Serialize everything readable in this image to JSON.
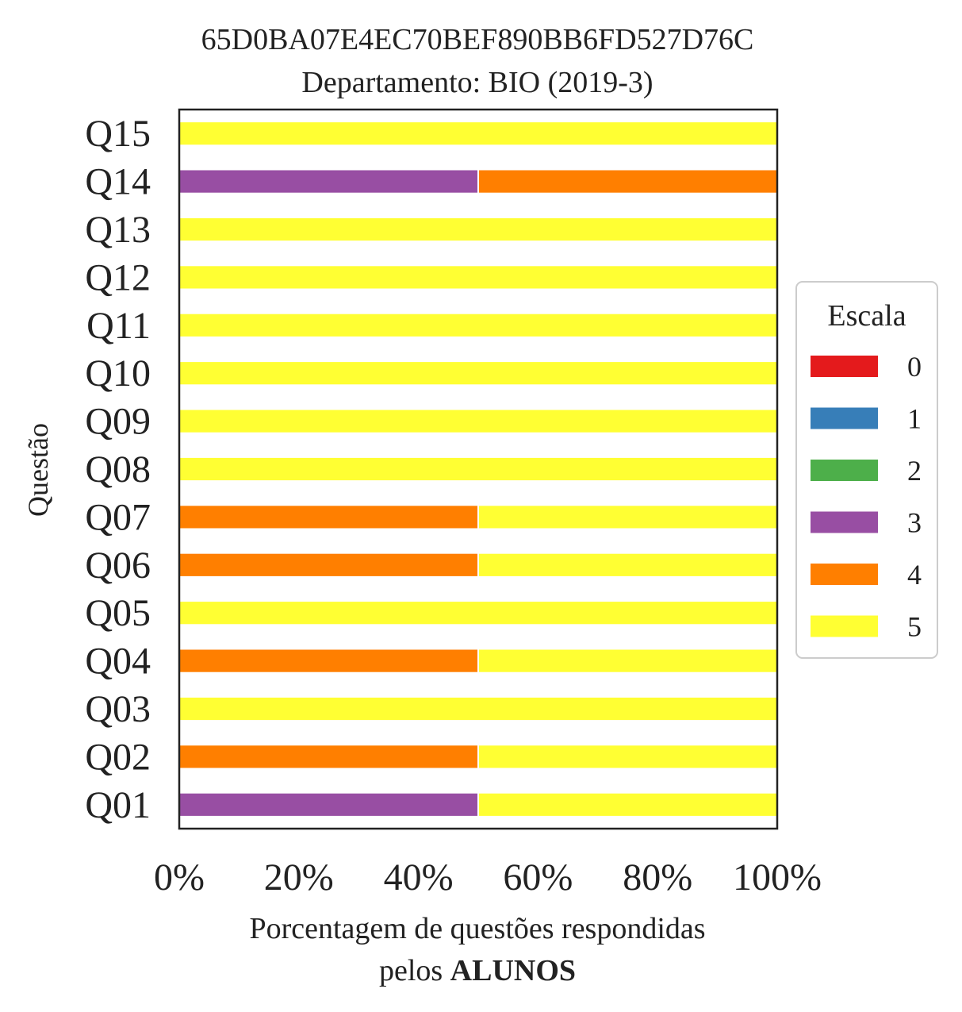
{
  "chart_data": {
    "type": "bar",
    "orientation": "horizontal",
    "stacked": true,
    "title": "65D0BA07E4EC70BEF890BB6FD527D76C",
    "subtitle": "Departamento: BIO (2019-3)",
    "xlabel_line1": "Porcentagem de questões respondidas",
    "xlabel_line2_prefix": "pelos ",
    "xlabel_line2_bold": "ALUNOS",
    "ylabel": "Questão",
    "xlim": [
      0,
      100
    ],
    "xticks": [
      {
        "value": 0,
        "label": "0%"
      },
      {
        "value": 20,
        "label": "20%"
      },
      {
        "value": 40,
        "label": "40%"
      },
      {
        "value": 60,
        "label": "60%"
      },
      {
        "value": 80,
        "label": "80%"
      },
      {
        "value": 100,
        "label": "100%"
      }
    ],
    "categories": [
      "Q01",
      "Q02",
      "Q03",
      "Q04",
      "Q05",
      "Q06",
      "Q07",
      "Q08",
      "Q09",
      "Q10",
      "Q11",
      "Q12",
      "Q13",
      "Q14",
      "Q15"
    ],
    "series": [
      {
        "name": "0",
        "color": "#e41a1c",
        "values": [
          0,
          0,
          0,
          0,
          0,
          0,
          0,
          0,
          0,
          0,
          0,
          0,
          0,
          0,
          0
        ]
      },
      {
        "name": "1",
        "color": "#377eb8",
        "values": [
          0,
          0,
          0,
          0,
          0,
          0,
          0,
          0,
          0,
          0,
          0,
          0,
          0,
          0,
          0
        ]
      },
      {
        "name": "2",
        "color": "#4daf4a",
        "values": [
          0,
          0,
          0,
          0,
          0,
          0,
          0,
          0,
          0,
          0,
          0,
          0,
          0,
          0,
          0
        ]
      },
      {
        "name": "3",
        "color": "#984ea3",
        "values": [
          50,
          0,
          0,
          0,
          0,
          0,
          0,
          0,
          0,
          0,
          0,
          0,
          0,
          50,
          0
        ]
      },
      {
        "name": "4",
        "color": "#ff7f00",
        "values": [
          0,
          50,
          0,
          50,
          0,
          50,
          50,
          0,
          0,
          0,
          0,
          0,
          0,
          50,
          0
        ]
      },
      {
        "name": "5",
        "color": "#ffff33",
        "values": [
          50,
          50,
          100,
          50,
          100,
          50,
          50,
          100,
          100,
          100,
          100,
          100,
          100,
          0,
          100
        ]
      }
    ],
    "legend": {
      "title": "Escala",
      "placement": "right"
    },
    "grid": false
  }
}
